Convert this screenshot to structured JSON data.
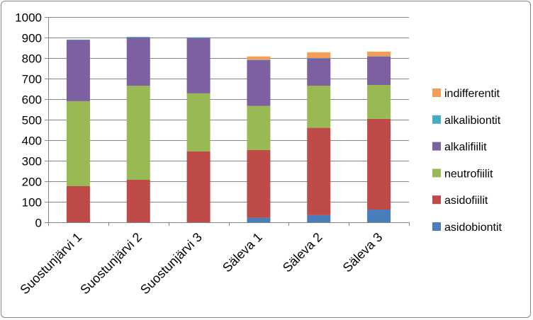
{
  "chart_data": {
    "type": "bar",
    "stacked": true,
    "categories": [
      "Suostunjärvi 1",
      "Suostunjärvi 2",
      "Suostunjärvi 3",
      "Säleva 1",
      "Säleva 2",
      "Säleva 3"
    ],
    "series": [
      {
        "name": "asidobiontit",
        "color": "#4a7ebb",
        "values": [
          0,
          0,
          0,
          22,
          35,
          62
        ]
      },
      {
        "name": "asidofiilit",
        "color": "#be4b48",
        "values": [
          177,
          207,
          345,
          330,
          425,
          442
        ]
      },
      {
        "name": "neutrofiilit",
        "color": "#98b954",
        "values": [
          413,
          458,
          283,
          215,
          205,
          165
        ]
      },
      {
        "name": "alkalifiilit",
        "color": "#7d60a0",
        "values": [
          298,
          235,
          270,
          223,
          133,
          138
        ]
      },
      {
        "name": "alkalibiontit",
        "color": "#46aac5",
        "values": [
          2,
          3,
          3,
          2,
          2,
          2
        ]
      },
      {
        "name": "indifferentit",
        "color": "#f59d56",
        "values": [
          0,
          0,
          0,
          16,
          28,
          22
        ]
      }
    ],
    "ylim": [
      0,
      1000
    ],
    "yticks": [
      0,
      100,
      200,
      300,
      400,
      500,
      600,
      700,
      800,
      900,
      1000
    ],
    "grid": true,
    "legend_position": "right",
    "title": "",
    "xlabel": "",
    "ylabel": ""
  }
}
